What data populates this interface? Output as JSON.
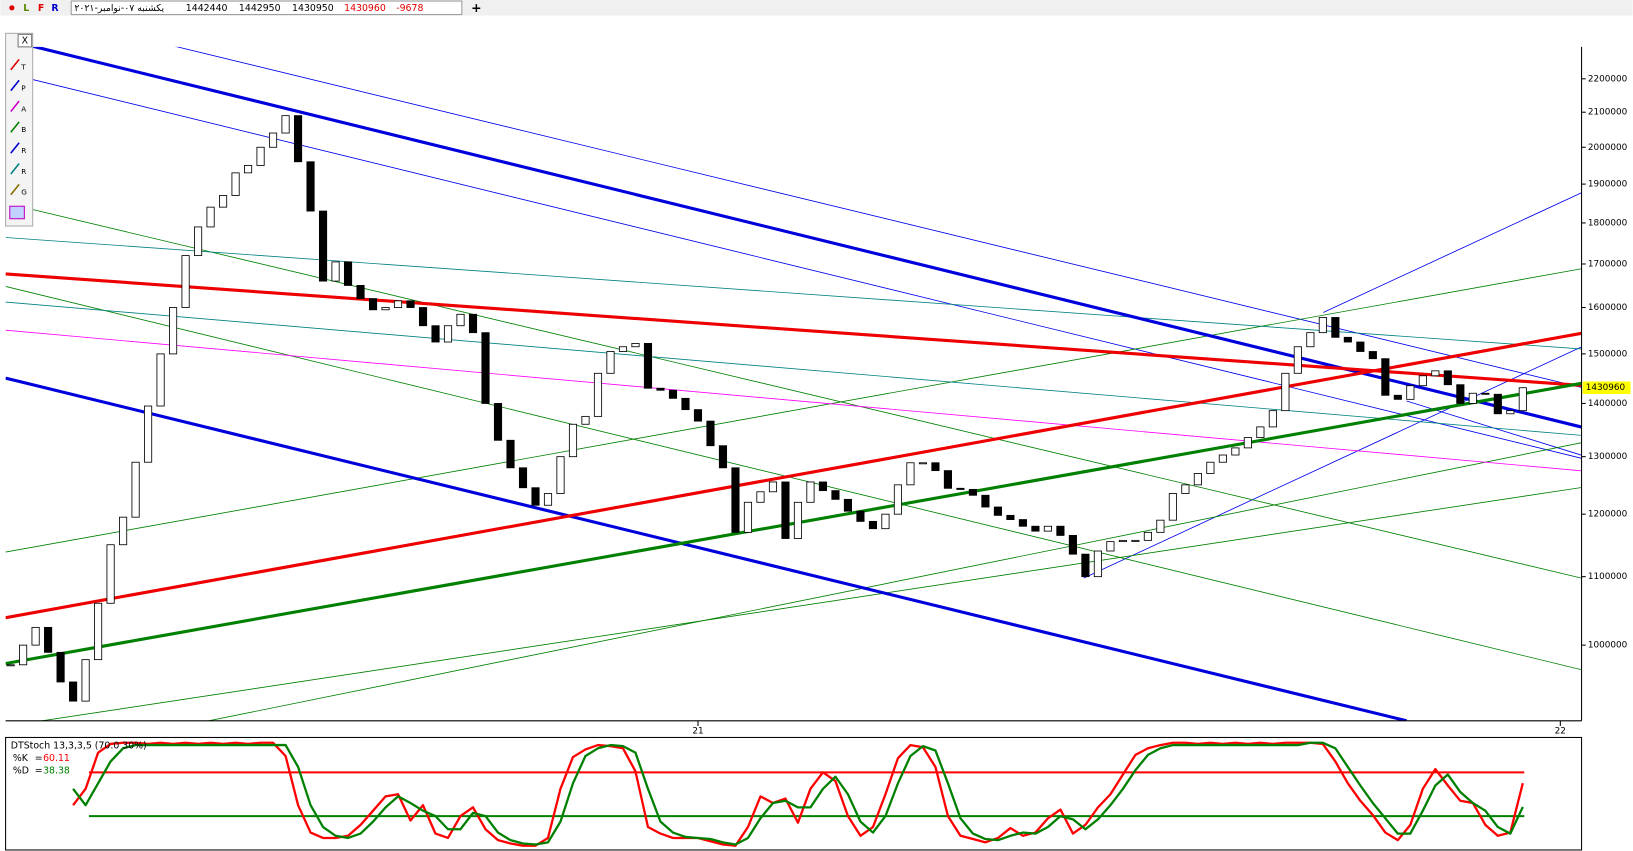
{
  "header": {
    "mode_letters": [
      "L",
      "F",
      "R"
    ],
    "date": "یکشنبه ۰۷-نوامبر-۲۰۲۱",
    "open": 1442440,
    "high": 1442950,
    "low": 1430950,
    "close": 1430960,
    "change": -9678,
    "add_button": "+"
  },
  "toolbar": {
    "close_button": "X",
    "tools": [
      "T",
      "P",
      "A",
      "B",
      "R",
      "R",
      "G"
    ]
  },
  "chart_data": [
    {
      "type": "candlestick",
      "log_scale": true,
      "up_color": "#ffffff",
      "down_color": "#000000",
      "xlim": [
        -0.4,
        125.7
      ],
      "xticks": [
        {
          "value": 55,
          "label": "21"
        },
        {
          "value": 124,
          "label": "22"
        }
      ],
      "ylim": [
        900000,
        2300000
      ],
      "yticks": [
        1000000,
        1100000,
        1200000,
        1300000,
        1400000,
        1500000,
        1600000,
        1700000,
        1800000,
        1900000,
        2000000,
        2100000,
        2200000
      ],
      "series": [
        {
          "name": "Close",
          "values": [
            973000,
            1000000,
            1025000,
            990000,
            950000,
            925000,
            980000,
            1060000,
            1150000,
            1195000,
            1290000,
            1395000,
            1500000,
            1600000,
            1720000,
            1790000,
            1840000,
            1870000,
            1930000,
            1950000,
            2000000,
            2040000,
            2090000,
            1960000,
            1830000,
            1660000,
            1705000,
            1650000,
            1620000,
            1595000,
            1600000,
            1615000,
            1600000,
            1560000,
            1525000,
            1560000,
            1585000,
            1545000,
            1400000,
            1330000,
            1280000,
            1245000,
            1215000,
            1235000,
            1300000,
            1360000,
            1375000,
            1460000,
            1505000,
            1515000,
            1522000,
            1430000,
            1426000,
            1410000,
            1388000,
            1366000,
            1320000,
            1280000,
            1170000,
            1220000,
            1238000,
            1255000,
            1160000,
            1220000,
            1255000,
            1240000,
            1225000,
            1205000,
            1188000,
            1176000,
            1200000,
            1250000,
            1289000,
            1289000,
            1275000,
            1244000,
            1242000,
            1232000,
            1212000,
            1198000,
            1191000,
            1180000,
            1172000,
            1180000,
            1165000,
            1135000,
            1100000,
            1140000,
            1155000,
            1157000,
            1157000,
            1170000,
            1190000,
            1235000,
            1250000,
            1270000,
            1290000,
            1303000,
            1316000,
            1335000,
            1355000,
            1386000,
            1460000,
            1515000,
            1545000,
            1578000,
            1535000,
            1525000,
            1505000,
            1490000,
            1416000,
            1408000,
            1435000,
            1455000,
            1465000,
            1437000,
            1400000,
            1420000,
            1418000,
            1380000,
            1386000,
            1430960
          ]
        }
      ],
      "price_tag_color": "#ffff00"
    },
    {
      "type": "line",
      "title": "DTStoch 13,3,3,5 (70.0 30%)",
      "xlim": [
        -0.4,
        125.7
      ],
      "ylim": [
        0,
        100
      ],
      "legend_separator": "=",
      "levels": [
        {
          "value": 70,
          "color": "#ff0000"
        },
        {
          "value": 30,
          "color": "#008000"
        }
      ],
      "series": [
        {
          "name": "%K",
          "color": "#ff0000",
          "value_label": "60.11",
          "values": [
            null,
            null,
            null,
            null,
            null,
            40,
            55,
            88,
            96,
            97,
            97,
            96,
            97,
            96,
            97,
            96,
            97,
            96,
            97,
            96,
            97,
            97,
            85,
            40,
            15,
            10,
            10,
            12,
            22,
            35,
            48,
            50,
            26,
            40,
            14,
            10,
            30,
            38,
            18,
            8,
            5,
            3,
            3,
            10,
            55,
            84,
            91,
            95,
            94,
            92,
            71,
            20,
            14,
            10,
            10,
            10,
            7,
            4,
            3,
            20,
            48,
            42,
            46,
            24,
            55,
            70,
            62,
            30,
            12,
            20,
            50,
            83,
            95,
            93,
            75,
            30,
            12,
            9,
            6,
            10,
            19,
            12,
            15,
            28,
            36,
            14,
            22,
            38,
            50,
            68,
            86,
            92,
            95,
            97,
            97,
            96,
            97,
            96,
            97,
            96,
            97,
            96,
            97,
            97,
            97,
            96,
            80,
            60,
            44,
            31,
            15,
            8,
            22,
            55,
            73,
            58,
            44,
            42,
            22,
            12,
            15,
            60.11
          ]
        },
        {
          "name": "%D",
          "color": "#008000",
          "value_label": "38.38",
          "values": [
            null,
            null,
            null,
            null,
            null,
            55,
            40,
            60,
            80,
            92,
            95,
            95,
            95,
            95,
            95,
            95,
            95,
            95,
            95,
            95,
            95,
            95,
            95,
            75,
            40,
            20,
            12,
            10,
            14,
            25,
            38,
            48,
            42,
            35,
            30,
            18,
            18,
            33,
            30,
            15,
            8,
            5,
            4,
            6,
            25,
            60,
            85,
            92,
            95,
            94,
            88,
            55,
            25,
            15,
            11,
            10,
            9,
            6,
            4,
            10,
            28,
            42,
            44,
            38,
            38,
            55,
            66,
            50,
            25,
            15,
            30,
            60,
            85,
            94,
            90,
            60,
            28,
            14,
            9,
            8,
            12,
            15,
            14,
            20,
            30,
            27,
            18,
            27,
            40,
            55,
            72,
            86,
            92,
            95,
            95,
            95,
            95,
            95,
            95,
            95,
            95,
            95,
            95,
            95,
            97,
            97,
            92,
            75,
            58,
            42,
            28,
            14,
            14,
            35,
            58,
            68,
            52,
            42,
            35,
            20,
            14,
            38.38
          ]
        }
      ]
    }
  ]
}
